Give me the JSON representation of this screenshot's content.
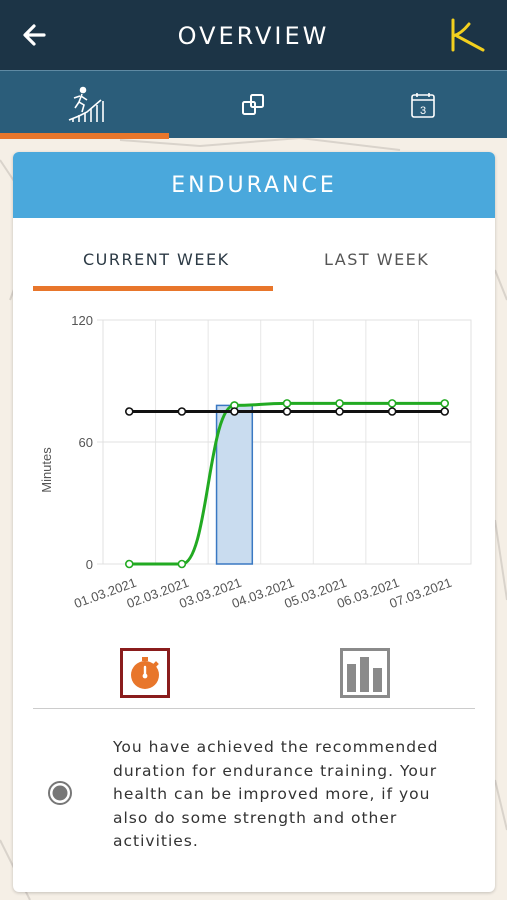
{
  "header": {
    "title": "OVERVIEW",
    "back_icon": "arrow-left-icon",
    "logo_icon": "k-logo-icon"
  },
  "tabs": [
    {
      "icon": "running-person-chart-icon",
      "active": true
    },
    {
      "icon": "overlapping-squares-icon",
      "active": false
    },
    {
      "icon": "calendar-3-icon",
      "active": false
    }
  ],
  "card": {
    "title": "ENDURANCE",
    "week_tabs": [
      {
        "label": "CURRENT WEEK",
        "active": true
      },
      {
        "label": "LAST WEEK",
        "active": false
      }
    ],
    "info_text": "You have achieved the recommended duration for endurance training. Your health can be improved more, if you also do some strength and other activities."
  },
  "chart_data": {
    "type": "bar",
    "categories": [
      "01.03.2021",
      "02.03.2021",
      "03.03.2021",
      "04.03.2021",
      "05.03.2021",
      "06.03.2021",
      "07.03.2021"
    ],
    "ylabel": "Minutes",
    "ylim": [
      0,
      120
    ],
    "yticks": [
      0,
      60,
      120
    ],
    "grid": true,
    "series": [
      {
        "type": "bar",
        "values": [
          null,
          null,
          78,
          null,
          null,
          null,
          null
        ],
        "color": "#c9dcef"
      },
      {
        "type": "line",
        "values": [
          0,
          0,
          78,
          79,
          79,
          79,
          79
        ],
        "color": "#22aa22"
      },
      {
        "type": "line",
        "values": [
          75,
          75,
          75,
          75,
          75,
          75,
          75
        ],
        "color": "#111111"
      }
    ]
  },
  "bottom_buttons": [
    {
      "icon": "stopwatch-icon",
      "selected": true
    },
    {
      "icon": "bar-chart-icon",
      "selected": false
    }
  ],
  "colors": {
    "topbar": "#1c3446",
    "tabbar": "#2b5d7a",
    "accent": "#e8762b",
    "card_header": "#4aa8dc",
    "logo": "#f3d01e"
  }
}
